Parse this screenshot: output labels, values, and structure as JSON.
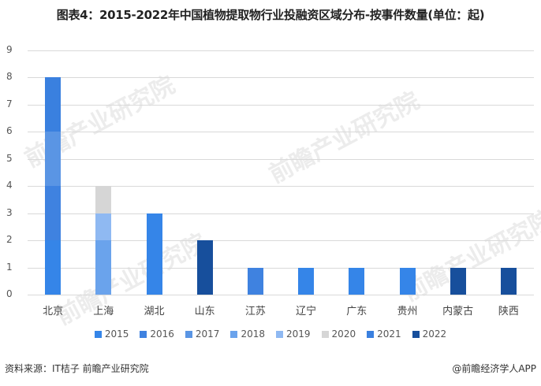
{
  "title": "图表4：2015-2022年中国植物提取物行业投融资区域分布-按事件数量(单位：起)",
  "footer": {
    "source": "资料来源：IT桔子 前瞻产业研究院",
    "credit": "@前瞻经济学人APP"
  },
  "watermark": "前瞻产业研究院",
  "colors": {
    "2015": "#3585e8",
    "2016": "#3f82e0",
    "2017": "#5a95e4",
    "2018": "#6aa3ec",
    "2019": "#8fb9f2",
    "2020": "#d6d6d6",
    "2021": "#3a80df",
    "2022": "#174f9c"
  },
  "chart_data": {
    "type": "bar",
    "stacked": true,
    "title": "图表4：2015-2022年中国植物提取物行业投融资区域分布-按事件数量(单位：起)",
    "xlabel": "",
    "ylabel": "",
    "ylim": [
      0,
      9
    ],
    "yticks": [
      0,
      1,
      2,
      3,
      4,
      5,
      6,
      7,
      8,
      9
    ],
    "grid": true,
    "legend_position": "bottom",
    "categories": [
      "北京",
      "上海",
      "湖北",
      "山东",
      "江苏",
      "辽宁",
      "广东",
      "贵州",
      "内蒙古",
      "陕西"
    ],
    "series": [
      {
        "name": "2015",
        "values": [
          2,
          0,
          3,
          0,
          0,
          1,
          1,
          1,
          0,
          0
        ]
      },
      {
        "name": "2016",
        "values": [
          2,
          0,
          0,
          0,
          1,
          0,
          0,
          0,
          0,
          0
        ]
      },
      {
        "name": "2017",
        "values": [
          2,
          0,
          0,
          0,
          0,
          0,
          0,
          0,
          0,
          0
        ]
      },
      {
        "name": "2018",
        "values": [
          0,
          2,
          0,
          0,
          0,
          0,
          0,
          0,
          0,
          0
        ]
      },
      {
        "name": "2019",
        "values": [
          0,
          1,
          0,
          0,
          0,
          0,
          0,
          0,
          0,
          0
        ]
      },
      {
        "name": "2020",
        "values": [
          0,
          1,
          0,
          0,
          0,
          0,
          0,
          0,
          0,
          0
        ]
      },
      {
        "name": "2021",
        "values": [
          2,
          0,
          0,
          0,
          0,
          0,
          0,
          0,
          0,
          0
        ]
      },
      {
        "name": "2022",
        "values": [
          0,
          0,
          0,
          2,
          0,
          0,
          0,
          0,
          1,
          1
        ]
      }
    ],
    "totals": [
      8,
      4,
      3,
      2,
      1,
      1,
      1,
      1,
      1,
      1
    ]
  }
}
